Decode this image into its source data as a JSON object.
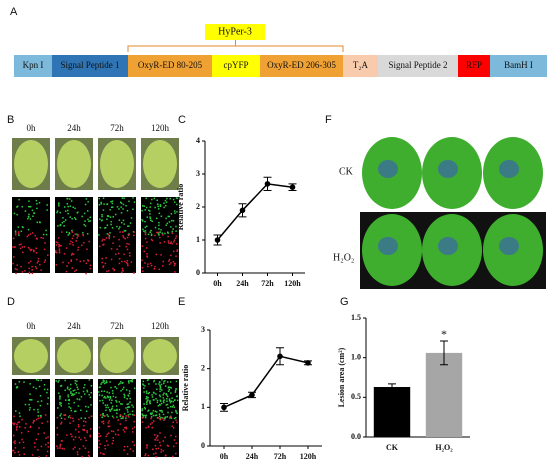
{
  "construct": {
    "label": "A",
    "title": "HyPer-3",
    "segments": [
      {
        "text": "Kpn I",
        "color": "#7cb9da"
      },
      {
        "text": "Signal Peptide 1",
        "color": "#2f75b5"
      },
      {
        "text": "OxyR-ED 80-205",
        "color": "#f0a133"
      },
      {
        "text": "cpYFP",
        "color": "#ffff00"
      },
      {
        "text": "OxyR-ED 206-305",
        "color": "#f0a133"
      },
      {
        "text": "T₂A",
        "color": "#f8cbad"
      },
      {
        "text": "Signal Peptide 2",
        "color": "#d9d9d9"
      },
      {
        "text": "RFP",
        "color": "#ff0000"
      },
      {
        "text": "BamH I",
        "color": "#7cb9da"
      }
    ]
  },
  "panel_b": {
    "label": "B",
    "times": [
      "0h",
      "24h",
      "72h",
      "120h"
    ]
  },
  "panel_d": {
    "label": "D",
    "times": [
      "0h",
      "24h",
      "72h",
      "120h"
    ]
  },
  "panel_f": {
    "label": "F",
    "rows": [
      "CK",
      "H₂O₂"
    ]
  },
  "chart_data": [
    {
      "type": "line",
      "label": "C",
      "y_label": "Relative ratio",
      "categories": [
        "0h",
        "24h",
        "72h",
        "120h"
      ],
      "values": [
        1.0,
        1.9,
        2.7,
        2.6
      ],
      "errors": [
        0.15,
        0.2,
        0.2,
        0.1
      ],
      "color": "#000000",
      "ylim": [
        0,
        4
      ],
      "yticks": [
        0,
        1,
        2,
        3,
        4
      ]
    },
    {
      "type": "line",
      "label": "E",
      "y_label": "Relative ratio",
      "categories": [
        "0h",
        "24h",
        "72h",
        "120h"
      ],
      "values": [
        1.0,
        1.32,
        2.32,
        2.15
      ],
      "errors": [
        0.1,
        0.07,
        0.22,
        0.05
      ],
      "color": "#000000",
      "ylim": [
        0,
        3
      ],
      "yticks": [
        0,
        1,
        2,
        3
      ]
    },
    {
      "type": "bar",
      "label": "G",
      "y_label": "Lesion area (cm²)",
      "categories": [
        "CK",
        "H₂O₂"
      ],
      "values": [
        0.63,
        1.06
      ],
      "errors": [
        0.04,
        0.15
      ],
      "colors": [
        "#000000",
        "#a6a6a6"
      ],
      "annotation": "*",
      "ylim": [
        0,
        1.5
      ],
      "yticks": [
        {
          "value": 0,
          "label": "0.0"
        },
        0.5,
        {
          "value": 1,
          "label": "1.0"
        },
        1.5
      ]
    }
  ]
}
